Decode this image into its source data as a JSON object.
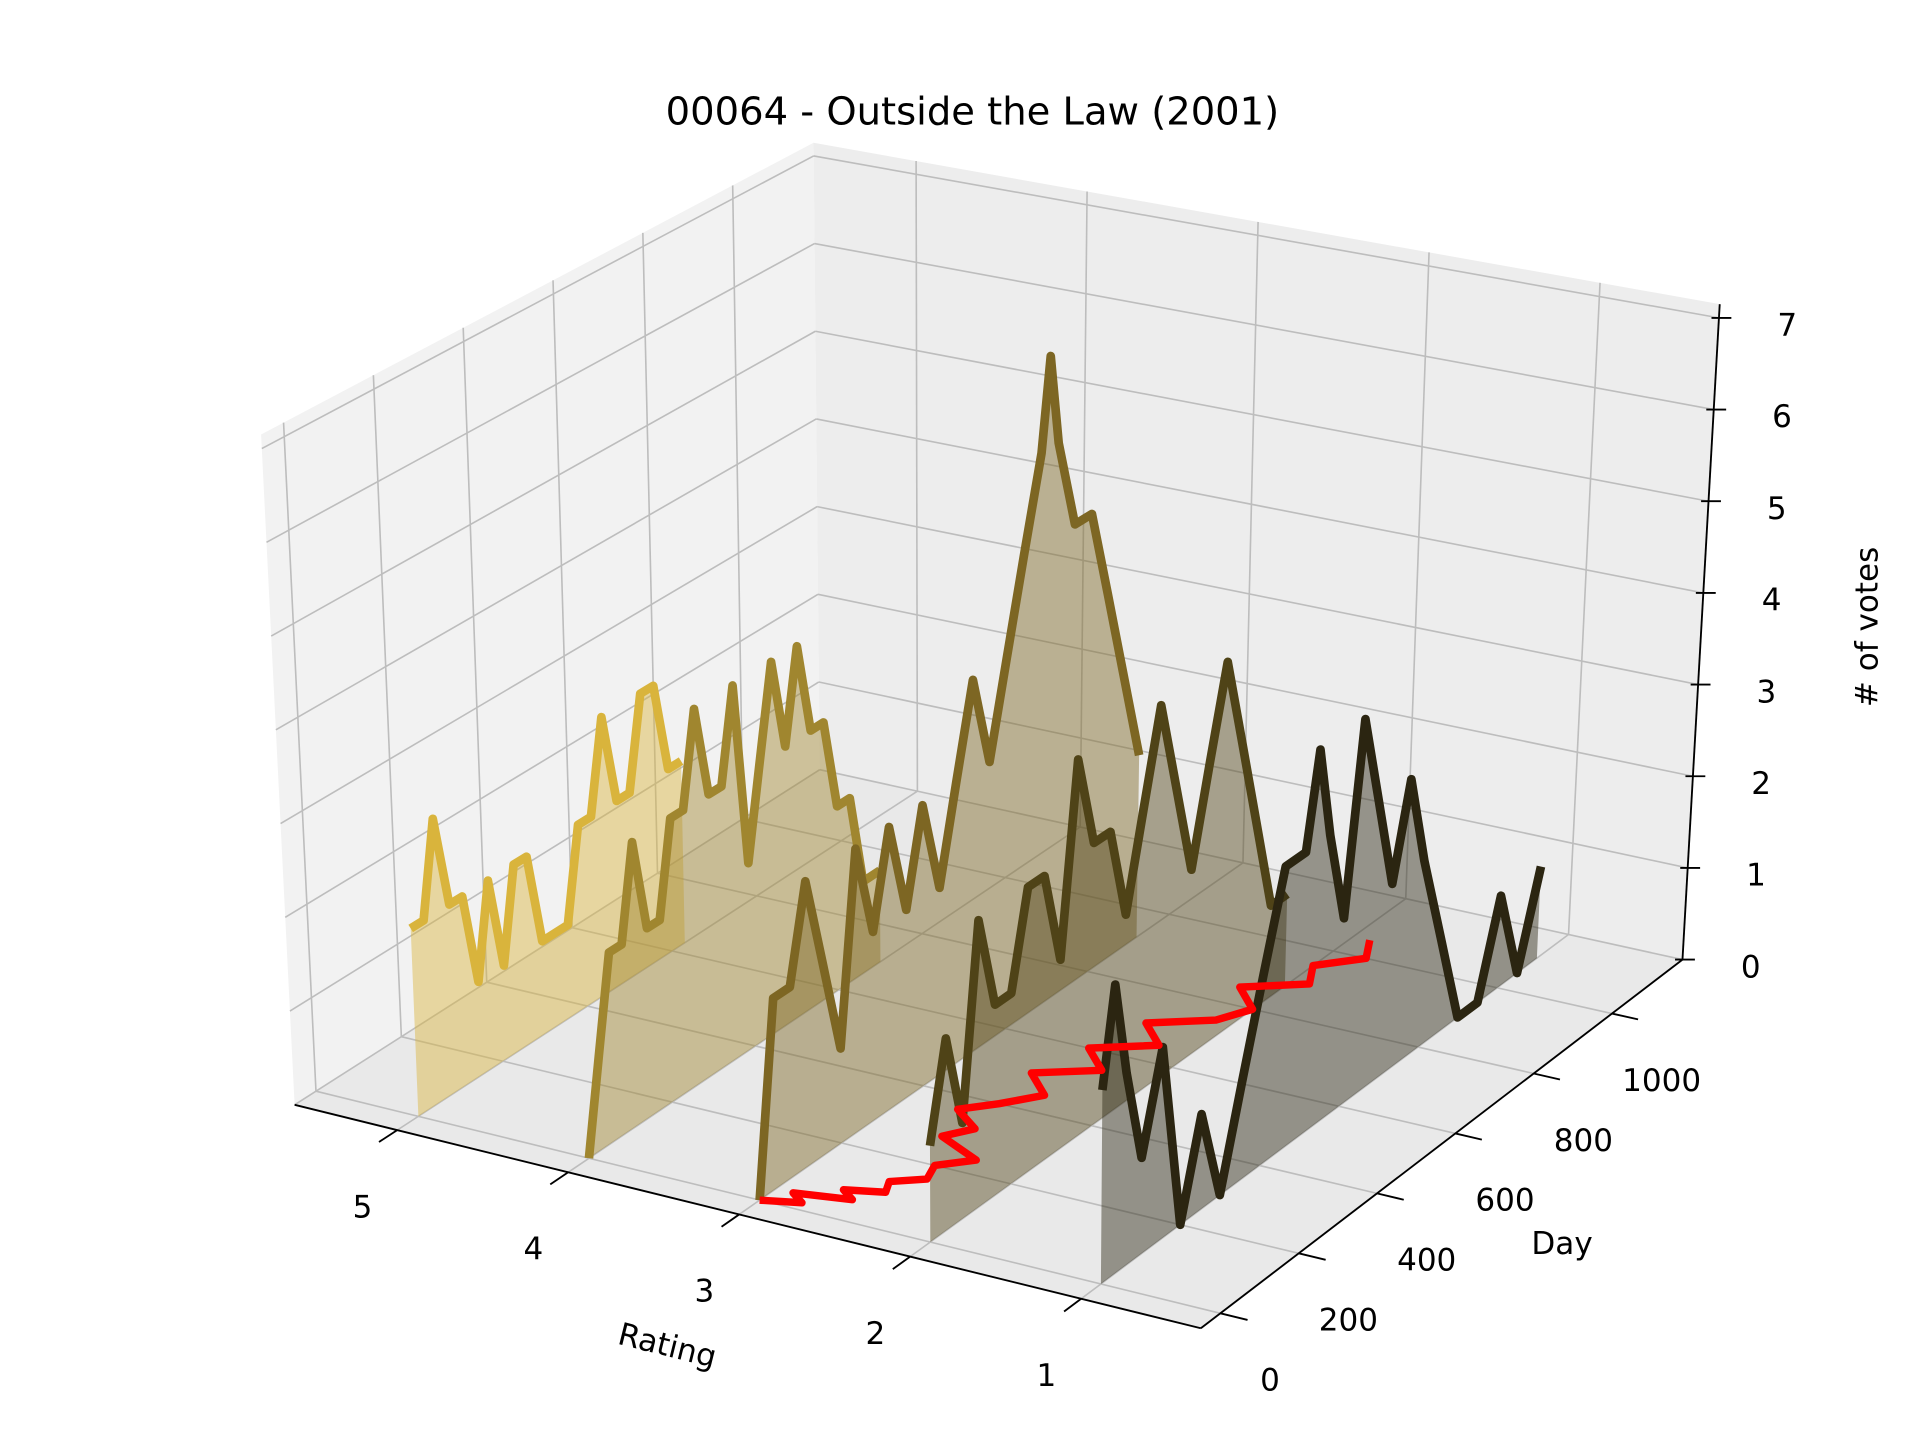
{
  "chart_data": {
    "type": "line3d",
    "title": "00064 - Outside the Law (2001)",
    "xlabel": "Rating",
    "ylabel": "Day",
    "zlabel": "# of votes",
    "xlim": [
      0.3,
      5.6
    ],
    "x_inverted": true,
    "ylim": [
      -50,
      1180
    ],
    "zlim": [
      0,
      7.15
    ],
    "xticks": [
      1,
      2,
      3,
      4,
      5
    ],
    "yticks": [
      0,
      200,
      400,
      600,
      800,
      1000
    ],
    "zticks": [
      0,
      1,
      2,
      3,
      4,
      5,
      6,
      7
    ],
    "grid": true,
    "series": [
      {
        "rating": 5,
        "color": "#d9b43c",
        "x": [
          0,
          30,
          60,
          90,
          120,
          150,
          180,
          210,
          240,
          270,
          300,
          330,
          360,
          390,
          420,
          450,
          480,
          510,
          540,
          570,
          600,
          630
        ],
        "values": [
          2,
          2,
          3,
          2,
          2,
          1,
          2,
          1,
          2,
          2,
          1,
          1,
          1,
          2,
          2,
          3,
          2,
          2,
          3,
          3,
          2,
          2
        ]
      },
      {
        "rating": 4,
        "color": "#a0862f",
        "x": [
          0,
          30,
          60,
          90,
          120,
          150,
          180,
          210,
          240,
          270,
          300,
          330,
          360,
          390,
          420,
          450,
          480,
          510,
          540,
          570,
          600,
          630,
          660,
          700
        ],
        "values": [
          0,
          1,
          2,
          2,
          3,
          2,
          2,
          3,
          3,
          4,
          3,
          3,
          4,
          2,
          3,
          4,
          3,
          4,
          3,
          3,
          2,
          2,
          1,
          1
        ]
      },
      {
        "rating": 3,
        "color": "#7d6623",
        "x": [
          0,
          40,
          80,
          120,
          160,
          200,
          240,
          280,
          320,
          360,
          400,
          440,
          480,
          520,
          560,
          600,
          640,
          680,
          700,
          720,
          760,
          800,
          840,
          880,
          920
        ],
        "values": [
          0,
          2,
          2,
          3,
          2,
          1,
          3,
          2,
          3,
          2,
          3,
          2,
          3,
          4,
          3,
          4,
          5,
          6,
          7,
          6,
          5,
          5,
          4,
          3,
          2
        ]
      },
      {
        "rating": 2,
        "color": "#4f4317",
        "x": [
          0,
          40,
          80,
          120,
          160,
          200,
          240,
          280,
          320,
          360,
          400,
          440,
          480,
          520,
          560,
          600,
          640,
          680,
          720,
          760,
          800,
          840,
          880
        ],
        "values": [
          1,
          2,
          1,
          3,
          2,
          2,
          3,
          3,
          2,
          4,
          3,
          3,
          2,
          3,
          4,
          3,
          2,
          3,
          4,
          3,
          2,
          1,
          1
        ]
      },
      {
        "rating": 1,
        "color": "#2b2511",
        "x": [
          0,
          30,
          60,
          100,
          150,
          200,
          250,
          300,
          350,
          400,
          450,
          500,
          530,
          560,
          600,
          640,
          680,
          720,
          760,
          800,
          850,
          900,
          950,
          1000,
          1050,
          1100
        ],
        "values": [
          2,
          3,
          2,
          1,
          2,
          0,
          1,
          0,
          1,
          2,
          3,
          3,
          4,
          3,
          2,
          4,
          3,
          2,
          3,
          2,
          1,
          0,
          0,
          1,
          0,
          1
        ]
      }
    ],
    "mean_line": {
      "color": "#ff0000",
      "x": [
        0,
        20,
        40,
        60,
        80,
        100,
        130,
        160,
        200,
        240,
        280,
        320,
        360,
        400,
        450,
        500,
        550,
        600,
        650,
        700,
        750,
        800,
        850,
        900,
        950,
        1000,
        1050
      ],
      "ratings": [
        3.0,
        2.8,
        2.9,
        2.6,
        2.7,
        2.5,
        2.55,
        2.4,
        2.45,
        2.3,
        2.6,
        2.5,
        2.7,
        2.55,
        2.4,
        2.6,
        2.3,
        2.5,
        2.2,
        2.4,
        2.1,
        2.0,
        2.2,
        1.9,
        2.0,
        1.8,
        1.9
      ]
    }
  }
}
